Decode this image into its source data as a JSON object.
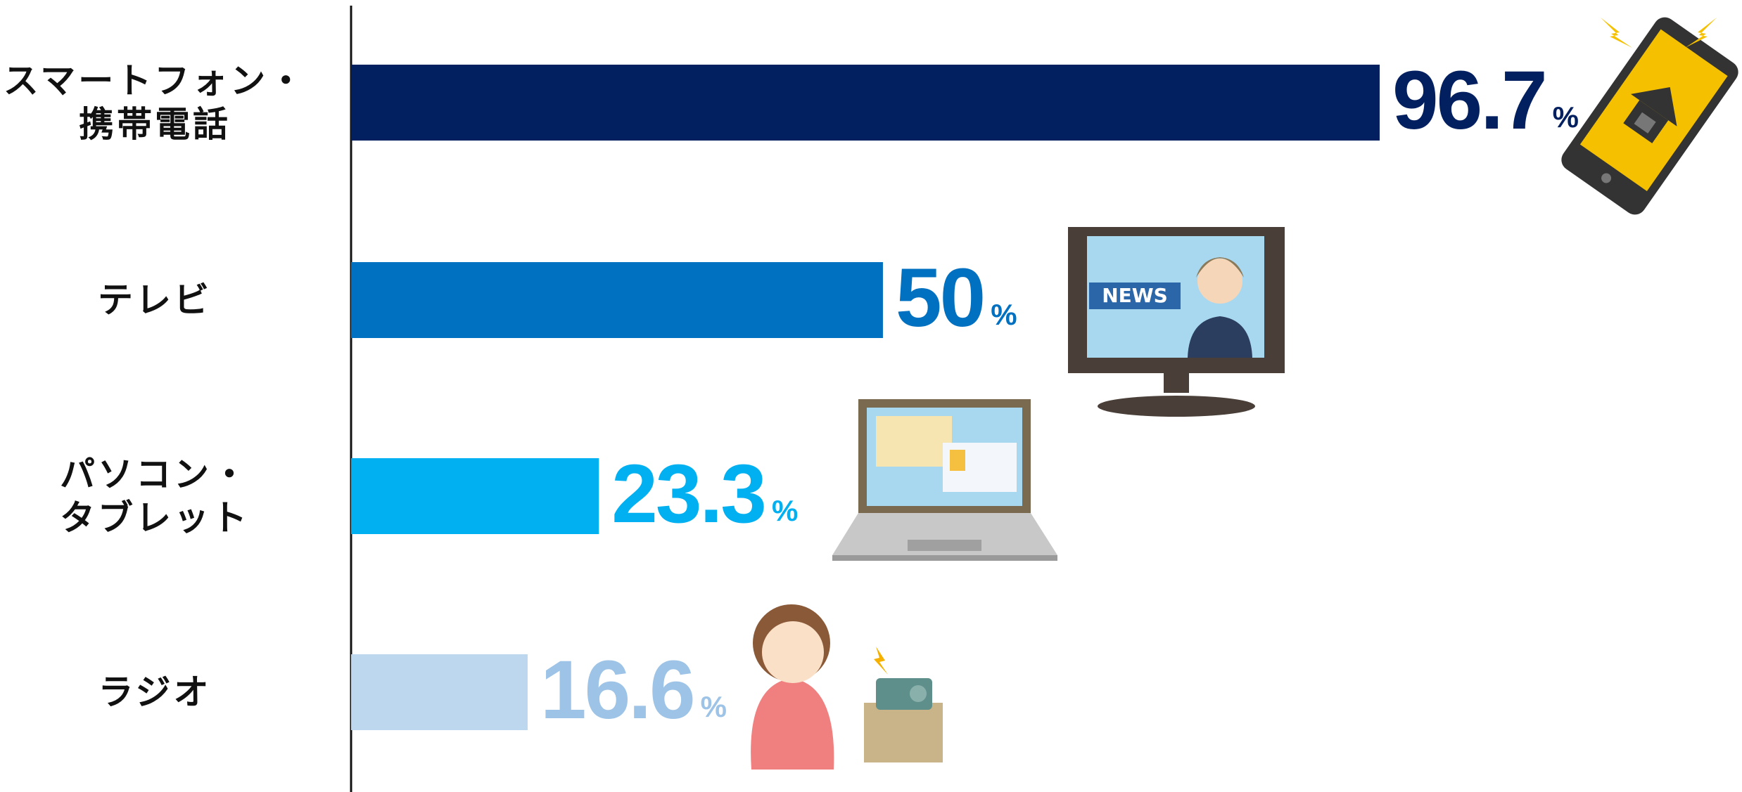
{
  "chart_data": {
    "type": "bar",
    "orientation": "horizontal",
    "categories": [
      "スマートフォン・\n携帯電話",
      "テレビ",
      "パソコン・\nタブレット",
      "ラジオ"
    ],
    "values": [
      96.7,
      50,
      23.3,
      16.6
    ],
    "value_labels": [
      "96.7%",
      "50%",
      "23.3%",
      "16.6%"
    ],
    "colors": [
      "#021f5f",
      "#0070c0",
      "#00b0f0",
      "#bdd7ee"
    ],
    "label_colors": [
      "#021f5f",
      "#0070c0",
      "#00b0f0",
      "#9dc3e6"
    ],
    "news_text": "NEWS"
  }
}
